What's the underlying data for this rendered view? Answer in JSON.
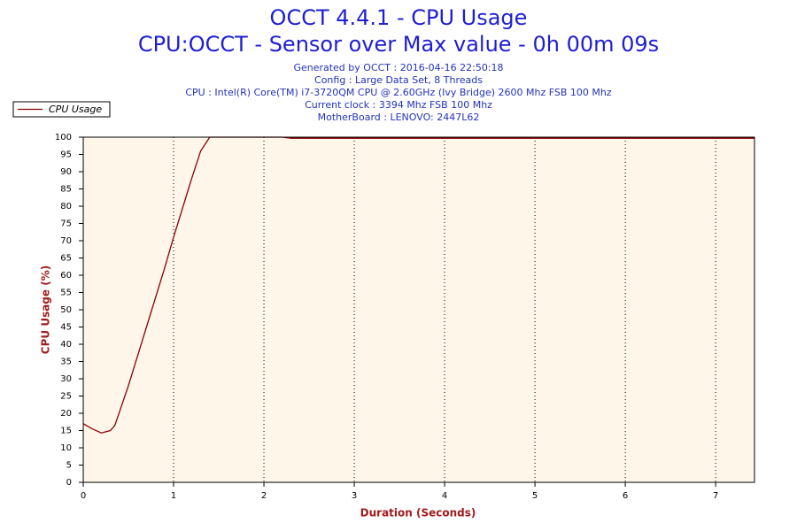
{
  "chart_data": {
    "type": "line",
    "title": "OCCT 4.4.1 - CPU Usage",
    "subtitle": "CPU:OCCT - Sensor over Max value - 0h 00m 09s",
    "info": [
      "Generated by OCCT : 2016-04-16 22:50:18",
      "Config : Large Data Set, 8 Threads",
      "CPU : Intel(R) Core(TM) i7-3720QM CPU @ 2.60GHz (Ivy Bridge) 2600 Mhz FSB 100 Mhz",
      "Current clock : 3394 Mhz FSB 100 Mhz",
      "MotherBoard : LENOVO: 2447L62"
    ],
    "xlabel": "Duration (Seconds)",
    "ylabel": "CPU Usage (%)",
    "x": [
      0,
      0.1,
      0.2,
      0.3,
      0.35,
      0.5,
      0.7,
      0.9,
      1.0,
      1.2,
      1.3,
      1.4,
      2.2,
      2.3,
      7.43
    ],
    "series": [
      {
        "name": "CPU Usage",
        "color": "#8b0000",
        "values": [
          17,
          15.5,
          14.3,
          15,
          16.5,
          28,
          45,
          62,
          71,
          88,
          96,
          100,
          100,
          99.7,
          99.7
        ]
      }
    ],
    "xlim": [
      0,
      7.43
    ],
    "xticks": [
      0,
      1,
      2,
      3,
      4,
      5,
      6,
      7
    ],
    "ylim": [
      0,
      100
    ],
    "yticks": [
      0,
      5,
      10,
      15,
      20,
      25,
      30,
      35,
      40,
      45,
      50,
      55,
      60,
      65,
      70,
      75,
      80,
      85,
      90,
      95,
      100
    ],
    "grid": true,
    "legend": "top-left"
  }
}
